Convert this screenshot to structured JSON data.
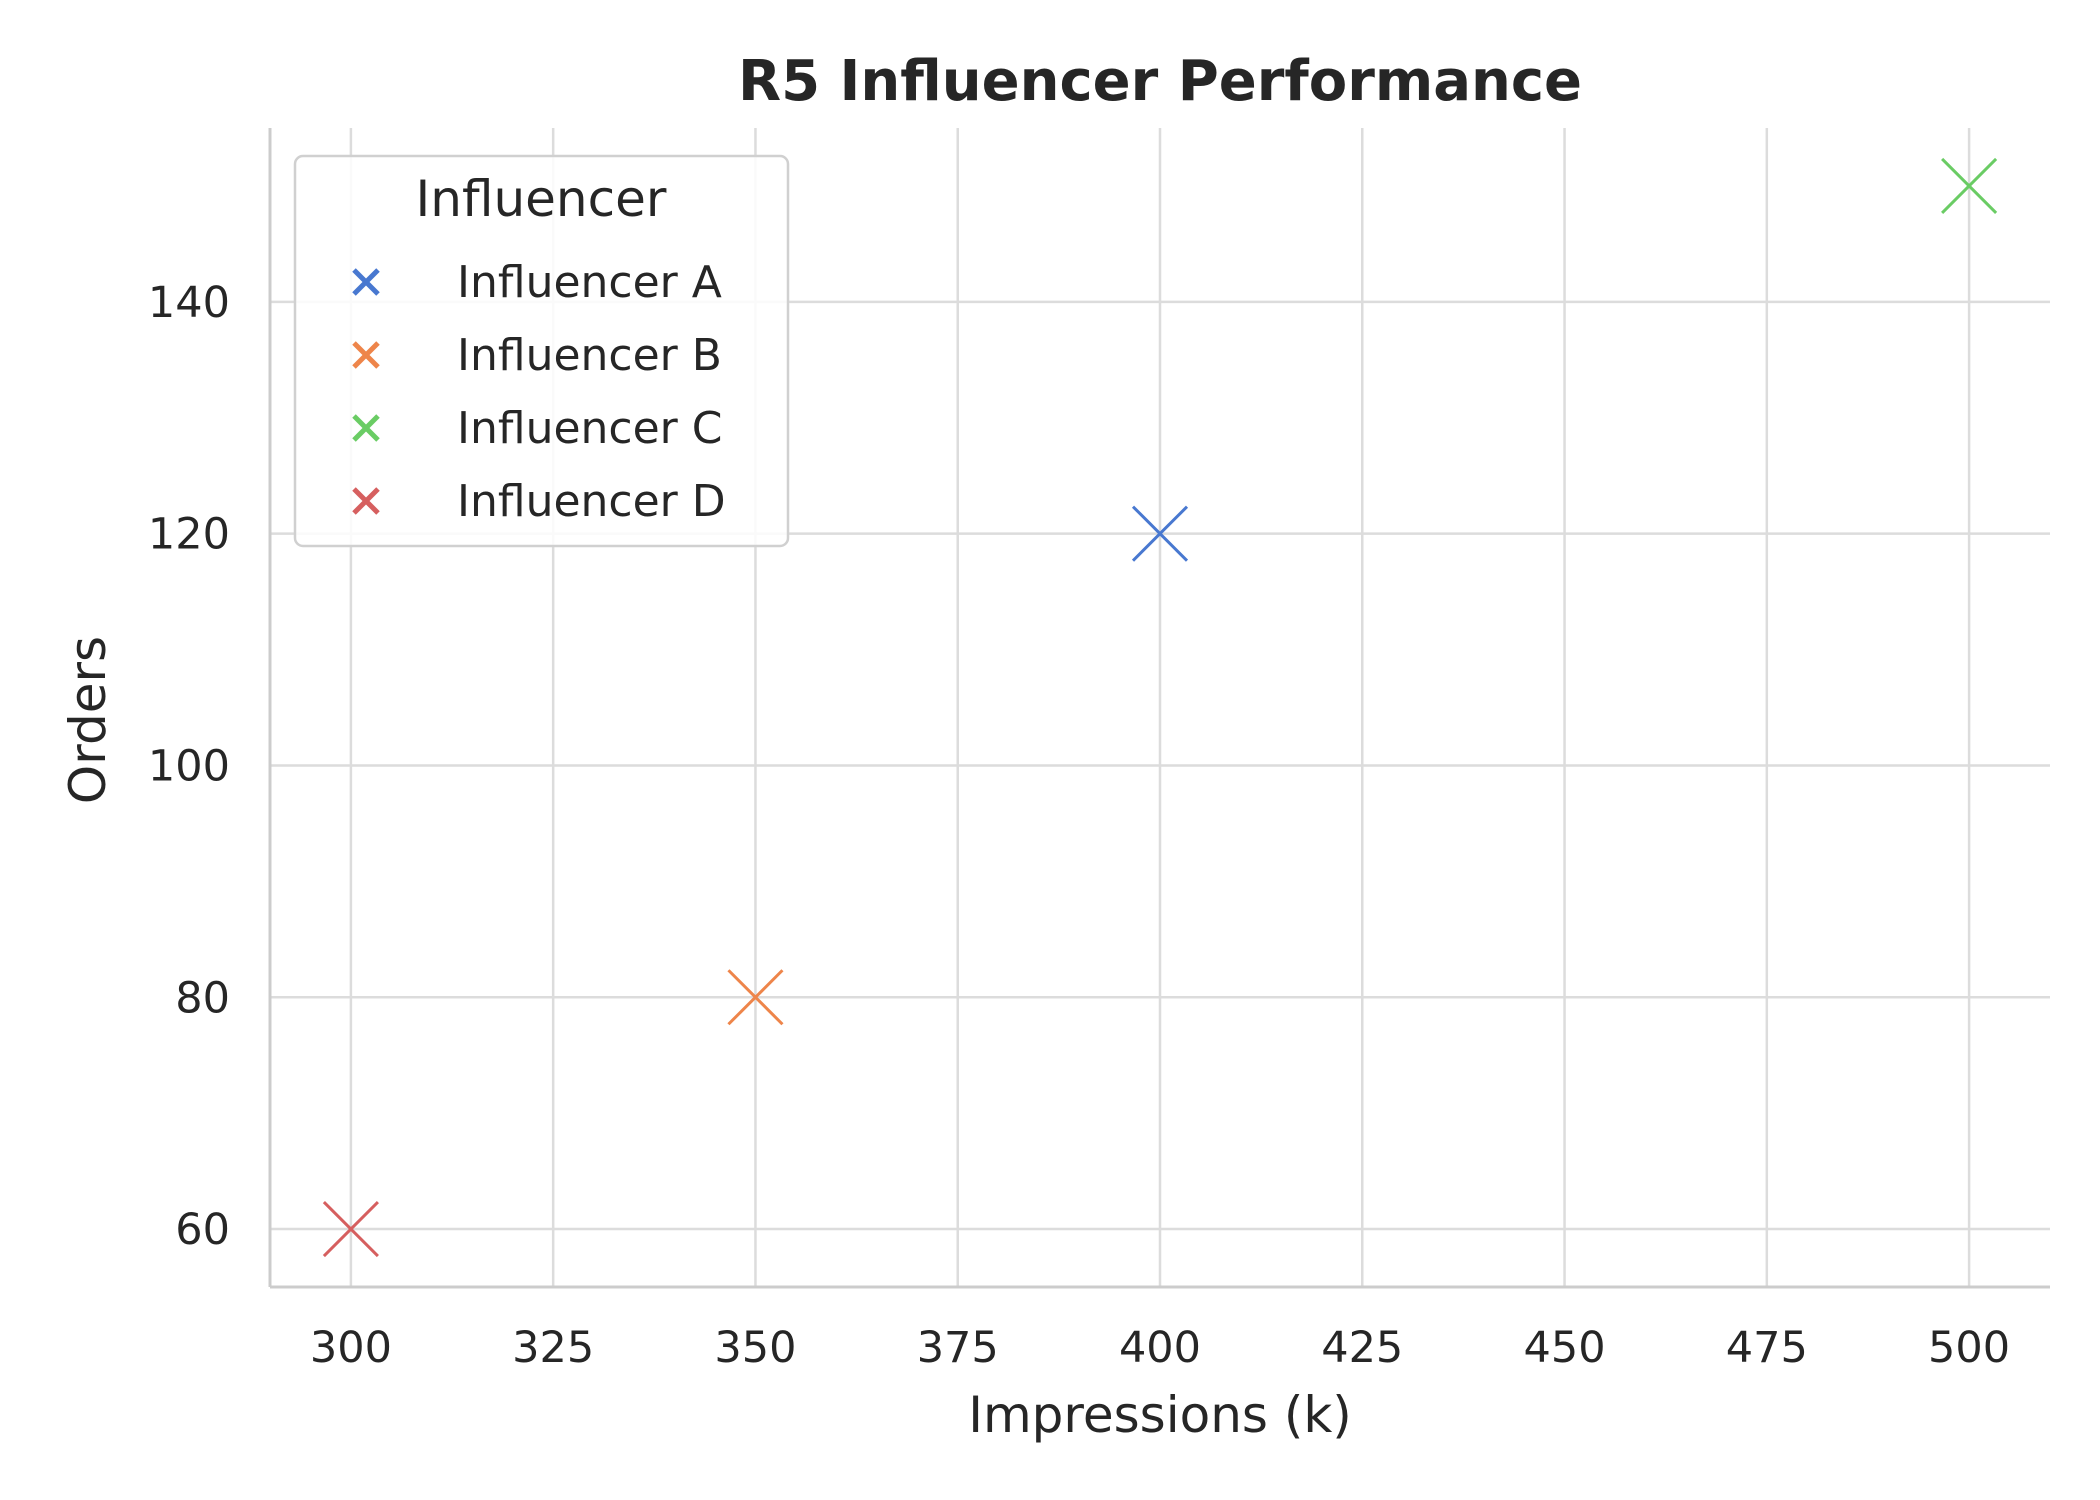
{
  "chart_data": {
    "type": "scatter",
    "title": "R5 Influencer Performance",
    "xlabel": "Impressions (k)",
    "ylabel": "Orders",
    "xlim": [
      290,
      510
    ],
    "ylim": [
      55,
      155
    ],
    "xticks": [
      300,
      325,
      350,
      375,
      400,
      425,
      450,
      475,
      500
    ],
    "yticks": [
      60,
      80,
      100,
      120,
      140
    ],
    "grid": true,
    "marker": "x",
    "legend": {
      "title": "Influencer",
      "placement": "top-left"
    },
    "series": [
      {
        "name": "Influencer A",
        "color": "#4878d0",
        "points": [
          {
            "x": 400,
            "y": 120
          }
        ]
      },
      {
        "name": "Influencer B",
        "color": "#ee854a",
        "points": [
          {
            "x": 350,
            "y": 80
          }
        ]
      },
      {
        "name": "Influencer C",
        "color": "#6acc64",
        "points": [
          {
            "x": 500,
            "y": 150
          }
        ]
      },
      {
        "name": "Influencer D",
        "color": "#d65f5f",
        "points": [
          {
            "x": 300,
            "y": 60
          }
        ]
      }
    ]
  }
}
